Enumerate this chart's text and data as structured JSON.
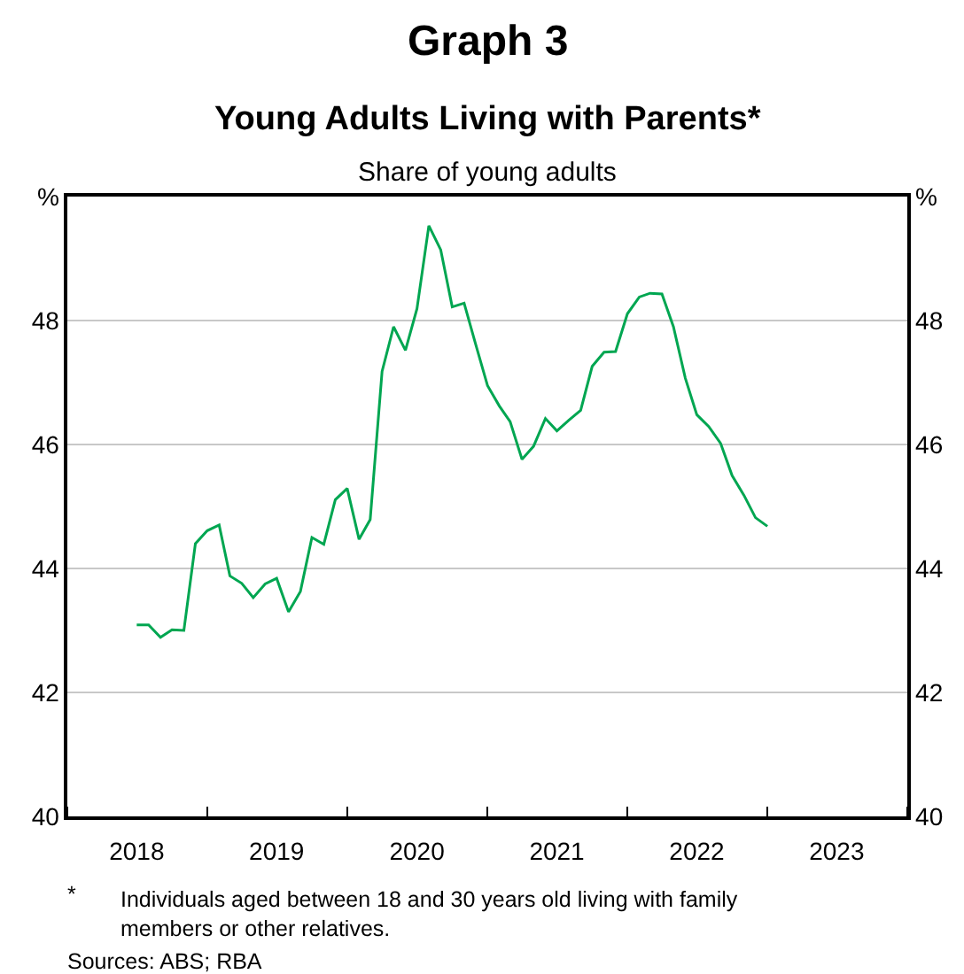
{
  "chart_data": {
    "type": "line",
    "title": "Graph 3\nYoung Adults Living with Parents*",
    "subtitle": "Share of young adults",
    "x": [
      "2018-07",
      "2018-08",
      "2018-09",
      "2018-10",
      "2018-11",
      "2018-12",
      "2019-01",
      "2019-02",
      "2019-03",
      "2019-04",
      "2019-05",
      "2019-06",
      "2019-07",
      "2019-08",
      "2019-09",
      "2019-10",
      "2019-11",
      "2019-12",
      "2020-01",
      "2020-02",
      "2020-03",
      "2020-04",
      "2020-05",
      "2020-06",
      "2020-07",
      "2020-08",
      "2020-09",
      "2020-10",
      "2020-11",
      "2020-12",
      "2021-01",
      "2021-02",
      "2021-03",
      "2021-04",
      "2021-05",
      "2021-06",
      "2021-07",
      "2021-08",
      "2021-09",
      "2021-10",
      "2021-11",
      "2021-12",
      "2022-01",
      "2022-02",
      "2022-03",
      "2022-04",
      "2022-05",
      "2022-06",
      "2022-07",
      "2022-08",
      "2022-09",
      "2022-10",
      "2022-11",
      "2022-12",
      "2023-01"
    ],
    "series": [
      {
        "color": "#00a651",
        "values": [
          43.09,
          43.09,
          42.89,
          43.01,
          43.0,
          44.4,
          44.61,
          44.7,
          43.88,
          43.76,
          43.53,
          43.75,
          43.84,
          43.3,
          43.63,
          44.5,
          44.39,
          45.11,
          45.29,
          44.47,
          44.79,
          47.18,
          47.9,
          47.52,
          48.19,
          49.53,
          49.14,
          48.22,
          48.28,
          47.62,
          46.95,
          46.62,
          46.37,
          45.76,
          45.97,
          46.42,
          46.22,
          46.39,
          46.55,
          47.26,
          47.49,
          47.5,
          48.11,
          48.38,
          48.44,
          48.43,
          47.9,
          47.07,
          46.48,
          46.29,
          46.02,
          45.5,
          45.18,
          44.82,
          44.68
        ]
      }
    ],
    "xlim": [
      "2018-01-01",
      "2024-01-01"
    ],
    "xticks": [
      {
        "value": "2018-01-01",
        "label": null
      },
      {
        "value": "2018-07-01",
        "label": "2018"
      },
      {
        "value": "2019-01-01",
        "label": null
      },
      {
        "value": "2019-07-01",
        "label": "2019"
      },
      {
        "value": "2020-01-01",
        "label": null
      },
      {
        "value": "2020-07-01",
        "label": "2020"
      },
      {
        "value": "2021-01-01",
        "label": null
      },
      {
        "value": "2021-07-01",
        "label": "2021"
      },
      {
        "value": "2022-01-01",
        "label": null
      },
      {
        "value": "2022-07-01",
        "label": "2022"
      },
      {
        "value": "2023-01-01",
        "label": null
      },
      {
        "value": "2023-07-01",
        "label": "2023"
      },
      {
        "value": "2024-01-01",
        "label": null
      }
    ],
    "ylim": [
      40,
      50
    ],
    "yticks": [
      40,
      42,
      44,
      46,
      48,
      {
        "value": 50,
        "label": "%"
      }
    ],
    "y2lim": [
      40,
      50
    ],
    "y2ticks": [
      40,
      42,
      44,
      46,
      48,
      {
        "value": 50,
        "label": "%"
      }
    ],
    "grid": "y",
    "line_style": "solid",
    "marker": "none",
    "annotations": [
      "*",
      "Individuals aged between 18 and 30 years old living with family members or other relatives.",
      "Sources: ABS; RBA"
    ]
  }
}
